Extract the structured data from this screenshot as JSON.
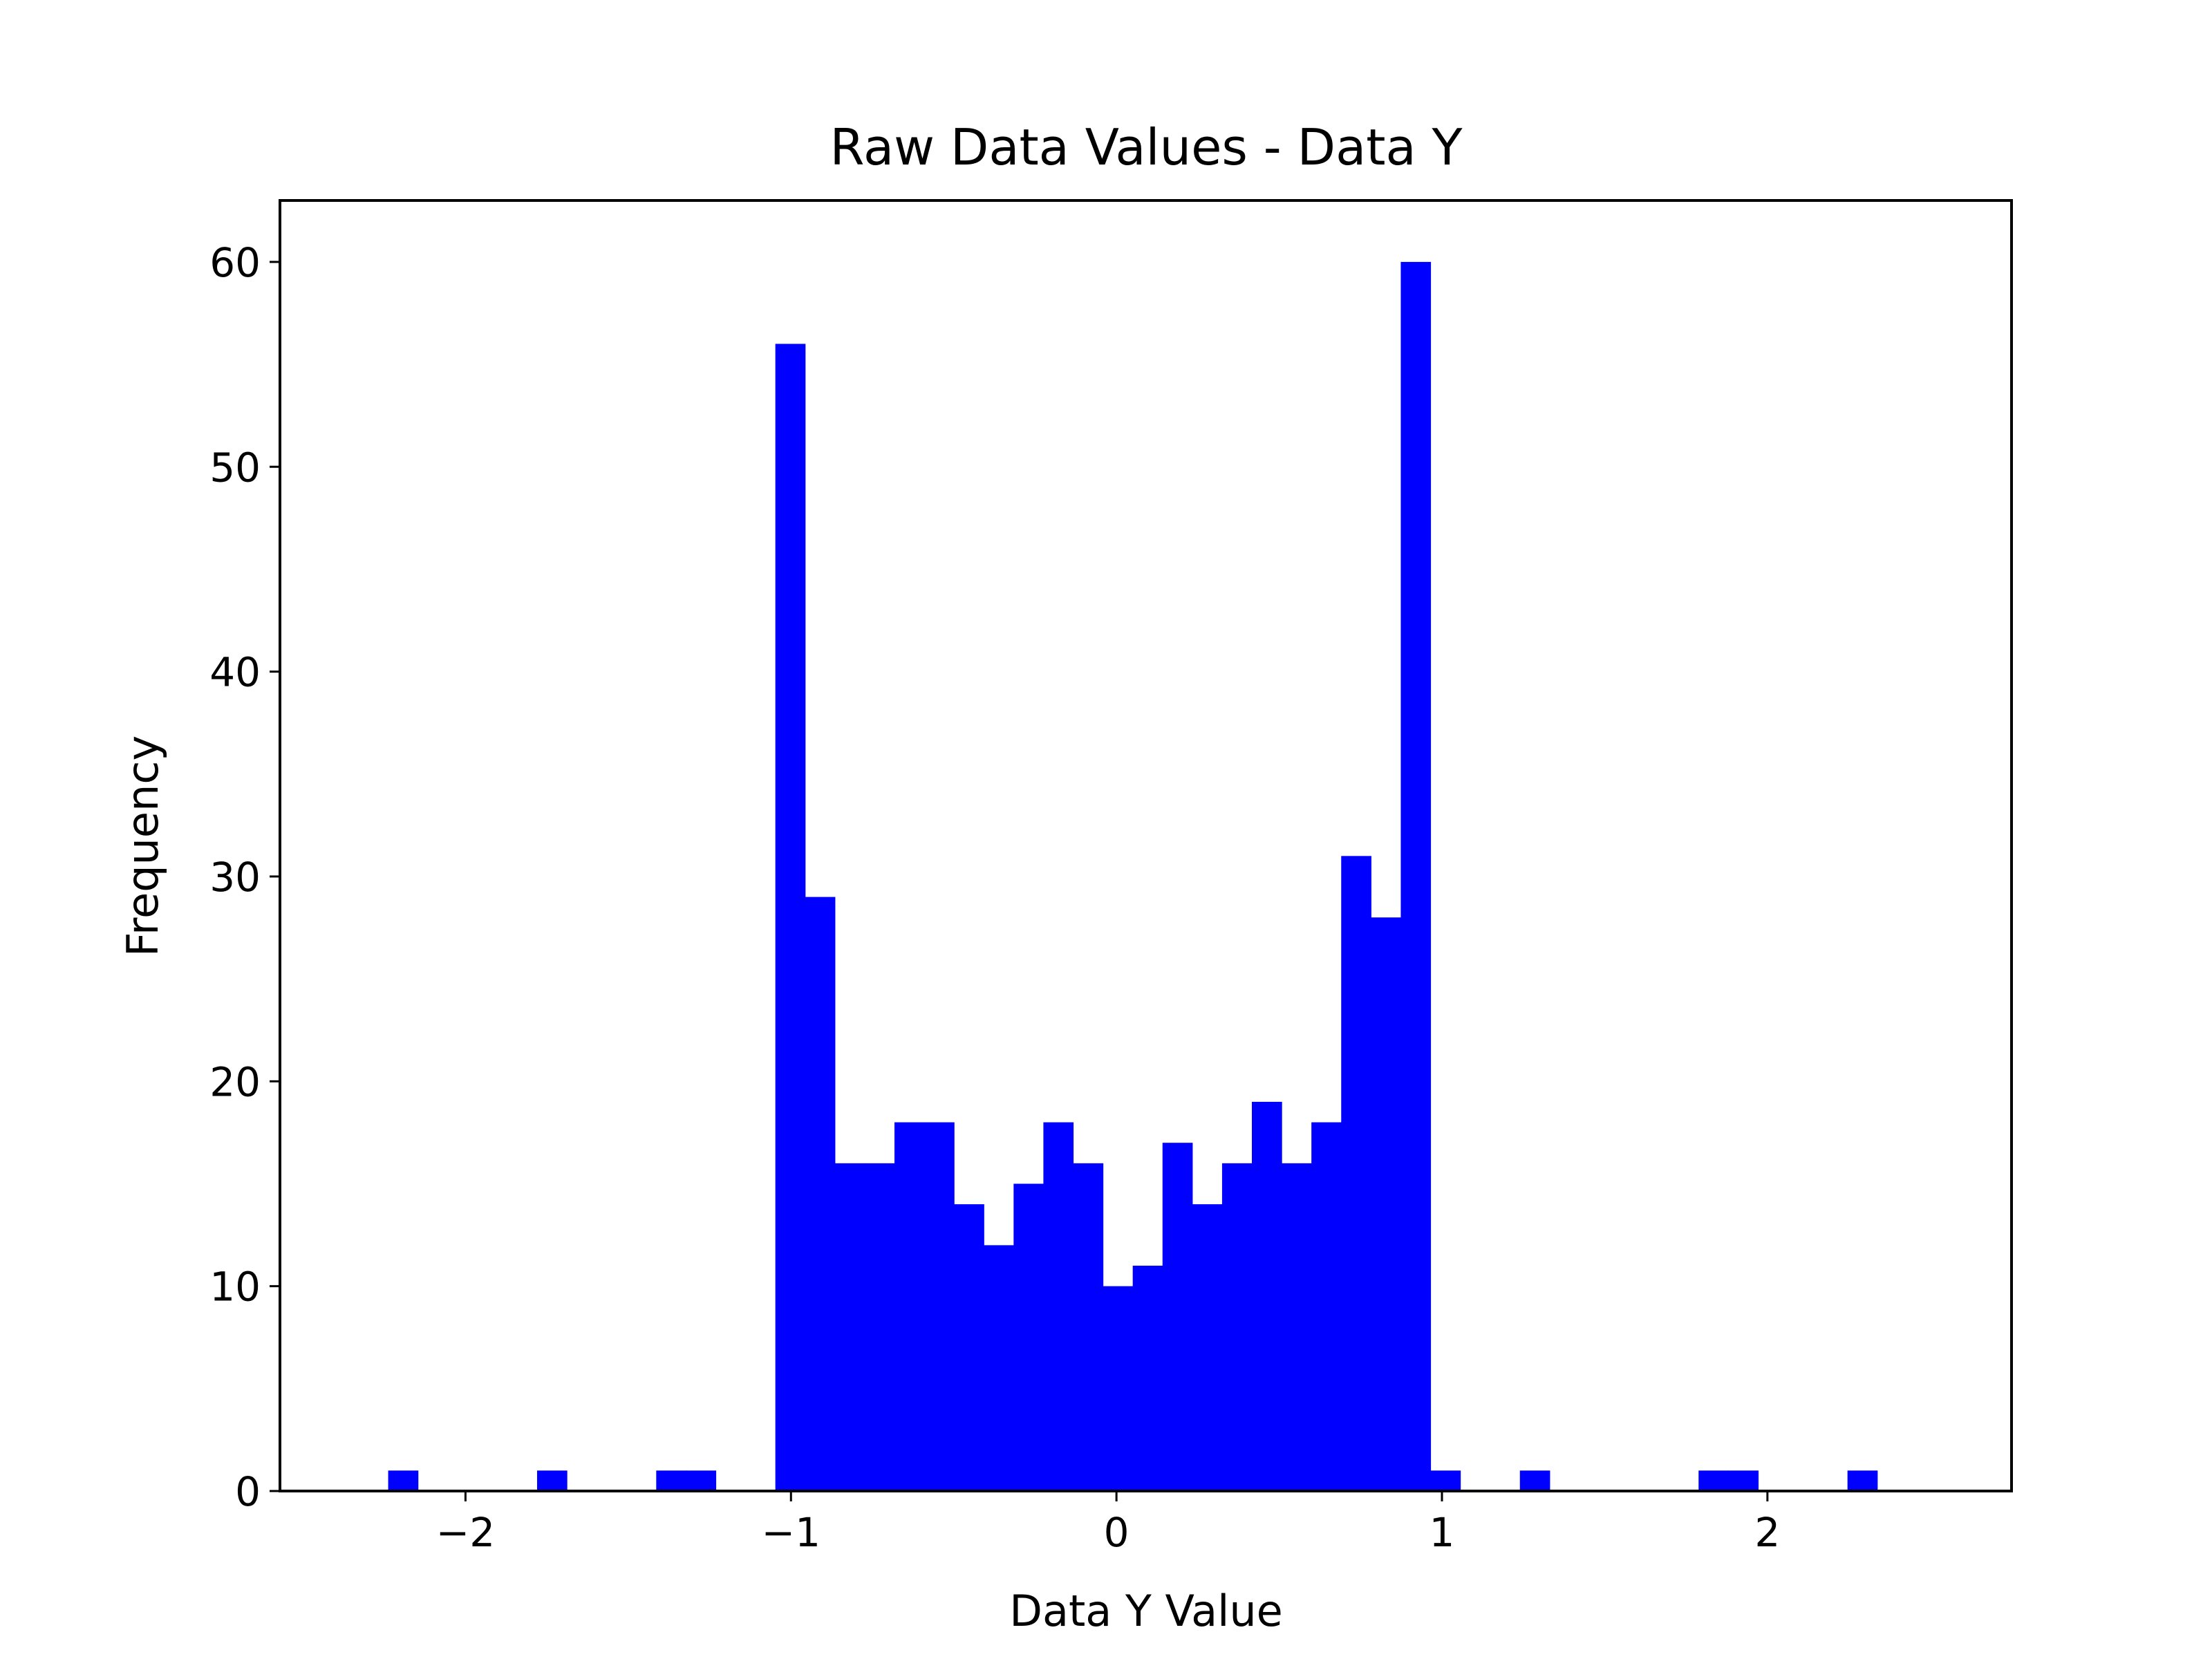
{
  "chart_data": {
    "type": "bar",
    "title": "Raw Data Values - Data Y",
    "xlabel": "Data Y Value",
    "ylabel": "Frequency",
    "bin_width": 0.0915,
    "xlim": [
      -2.57,
      2.75
    ],
    "ylim": [
      0,
      63
    ],
    "x_ticks": [
      -2,
      -1,
      0,
      1,
      2
    ],
    "x_tick_labels": [
      "−2",
      "−1",
      "0",
      "1",
      "2"
    ],
    "y_ticks": [
      0,
      10,
      20,
      30,
      40,
      50,
      60
    ],
    "y_tick_labels": [
      "0",
      "10",
      "20",
      "30",
      "40",
      "50",
      "60"
    ],
    "grid": false,
    "legend": "none",
    "bar_color": "#0000ff",
    "bins": [
      {
        "x0": -2.2375,
        "value": 1
      },
      {
        "x0": -2.146,
        "value": 0
      },
      {
        "x0": -2.0545,
        "value": 0
      },
      {
        "x0": -1.963,
        "value": 0
      },
      {
        "x0": -1.8715,
        "value": 0
      },
      {
        "x0": -1.78,
        "value": 1
      },
      {
        "x0": -1.6885,
        "value": 0
      },
      {
        "x0": -1.597,
        "value": 0
      },
      {
        "x0": -1.5055,
        "value": 0
      },
      {
        "x0": -1.414,
        "value": 1
      },
      {
        "x0": -1.3225,
        "value": 1
      },
      {
        "x0": -1.231,
        "value": 0
      },
      {
        "x0": -1.1395,
        "value": 0
      },
      {
        "x0": -1.048,
        "value": 56
      },
      {
        "x0": -0.9565,
        "value": 29
      },
      {
        "x0": -0.865,
        "value": 16
      },
      {
        "x0": -0.7735,
        "value": 16
      },
      {
        "x0": -0.682,
        "value": 18
      },
      {
        "x0": -0.5905,
        "value": 18
      },
      {
        "x0": -0.499,
        "value": 14
      },
      {
        "x0": -0.4075,
        "value": 12
      },
      {
        "x0": -0.316,
        "value": 15
      },
      {
        "x0": -0.2245,
        "value": 18
      },
      {
        "x0": -0.133,
        "value": 16
      },
      {
        "x0": -0.0415,
        "value": 10
      },
      {
        "x0": 0.05,
        "value": 11
      },
      {
        "x0": 0.1415,
        "value": 17
      },
      {
        "x0": 0.233,
        "value": 14
      },
      {
        "x0": 0.3245,
        "value": 16
      },
      {
        "x0": 0.416,
        "value": 19
      },
      {
        "x0": 0.5075,
        "value": 16
      },
      {
        "x0": 0.599,
        "value": 18
      },
      {
        "x0": 0.6905,
        "value": 31
      },
      {
        "x0": 0.782,
        "value": 28
      },
      {
        "x0": 0.8735,
        "value": 60
      },
      {
        "x0": 0.965,
        "value": 1
      },
      {
        "x0": 1.0565,
        "value": 0
      },
      {
        "x0": 1.148,
        "value": 0
      },
      {
        "x0": 1.2395,
        "value": 1
      },
      {
        "x0": 1.331,
        "value": 0
      },
      {
        "x0": 1.4225,
        "value": 0
      },
      {
        "x0": 1.514,
        "value": 0
      },
      {
        "x0": 1.6055,
        "value": 0
      },
      {
        "x0": 1.697,
        "value": 0
      },
      {
        "x0": 1.7885,
        "value": 1
      },
      {
        "x0": 1.88,
        "value": 1
      },
      {
        "x0": 1.9715,
        "value": 0
      },
      {
        "x0": 2.063,
        "value": 0
      },
      {
        "x0": 2.1545,
        "value": 0
      },
      {
        "x0": 2.246,
        "value": 1
      }
    ]
  }
}
